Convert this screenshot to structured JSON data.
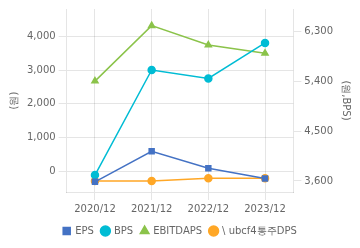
{
  "chart_data": {
    "type": "line",
    "categories": [
      "2020/12",
      "2021/12",
      "2022/12",
      "2023/12"
    ],
    "series": [
      {
        "name": "EPS",
        "color": "#4472c4",
        "marker": "square",
        "values": [
          -300,
          600,
          100,
          -200
        ]
      },
      {
        "name": "BPS",
        "color": "#00bcd4",
        "marker": "circle",
        "values": [
          -100,
          3000,
          2750,
          3800
        ]
      },
      {
        "name": "EBITDAPS",
        "color": "#8bc34a",
        "marker": "triangle",
        "axis": "y2",
        "values": [
          5400,
          6400,
          6050,
          5900
        ]
      },
      {
        "name": "\\ ubcf4통주DPS",
        "color": "#ffa726",
        "marker": "circle",
        "axis": "y2",
        "values": [
          3600,
          3600,
          3650,
          3650
        ]
      }
    ],
    "ylabel": "(원)",
    "y2label": "(원,BPS)",
    "ylim": [
      -600,
      4800
    ],
    "yticks": [
      0,
      {
        "value": 1000,
        "label": "1,000"
      },
      {
        "value": 2000,
        "label": "2,000"
      },
      {
        "value": 3000,
        "label": "3,000"
      },
      {
        "value": 4000,
        "label": "4,000"
      }
    ],
    "y2lim": [
      3400,
      6700
    ],
    "y2ticks": [
      {
        "value": 3600,
        "label": "3,600"
      },
      {
        "value": 4500,
        "label": "4,500"
      },
      {
        "value": 5400,
        "label": "5,400"
      },
      {
        "value": 6300,
        "label": "6,300"
      }
    ],
    "grid": true,
    "legend": "bottom"
  }
}
